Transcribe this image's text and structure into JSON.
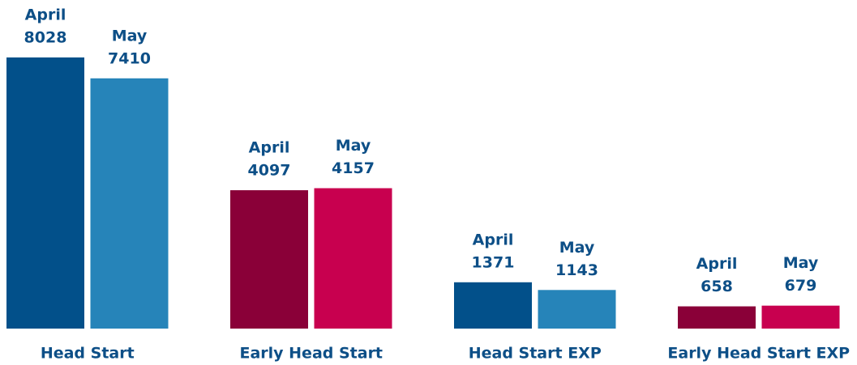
{
  "chart_data": {
    "type": "bar",
    "categories": [
      "Head Start",
      "Early Head Start",
      "Head Start EXP",
      "Early Head Start EXP"
    ],
    "series": [
      {
        "name": "April",
        "values": [
          8028,
          4097,
          1371,
          658
        ],
        "colors": [
          "#02508a",
          "#8a0038",
          "#02508a",
          "#8a0038"
        ]
      },
      {
        "name": "May",
        "values": [
          7410,
          4157,
          1143,
          679
        ],
        "colors": [
          "#2684b9",
          "#c8004f",
          "#2684b9",
          "#c8004f"
        ]
      }
    ]
  }
}
